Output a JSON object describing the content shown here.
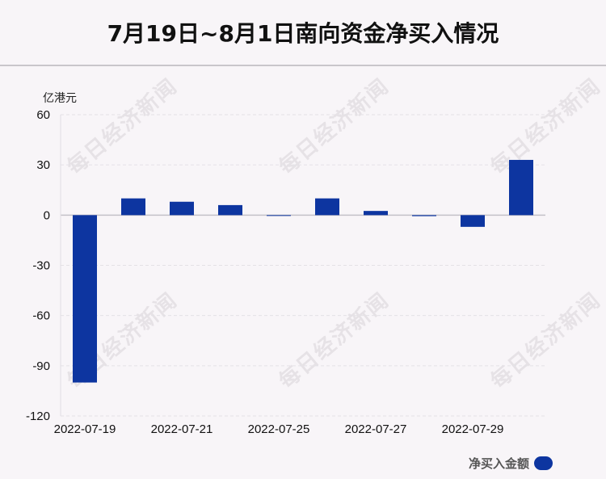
{
  "title": "7月19日~8月1日南向资金净买入情况",
  "watermark": "每日经济新闻",
  "chart_data": {
    "type": "bar",
    "title": "7月19日~8月1日南向资金净买入情况",
    "ylabel": "亿港元",
    "xlabel": "",
    "ylim": [
      -120,
      60
    ],
    "yticks": [
      60,
      30,
      0,
      -30,
      -60,
      -90,
      -120
    ],
    "grid": true,
    "legend_position": "bottom-right",
    "categories": [
      "2022-07-19",
      "2022-07-20",
      "2022-07-21",
      "2022-07-22",
      "2022-07-25",
      "2022-07-26",
      "2022-07-27",
      "2022-07-28",
      "2022-07-29",
      "2022-08-01"
    ],
    "x_tick_labels": [
      "2022-07-19",
      "2022-07-21",
      "2022-07-25",
      "2022-07-27",
      "2022-07-29"
    ],
    "series": [
      {
        "name": "净买入金额",
        "color": "#0d35a0",
        "values": [
          -100,
          10,
          8,
          6,
          -0.3,
          10,
          2.5,
          -0.6,
          -7,
          33
        ]
      }
    ]
  }
}
